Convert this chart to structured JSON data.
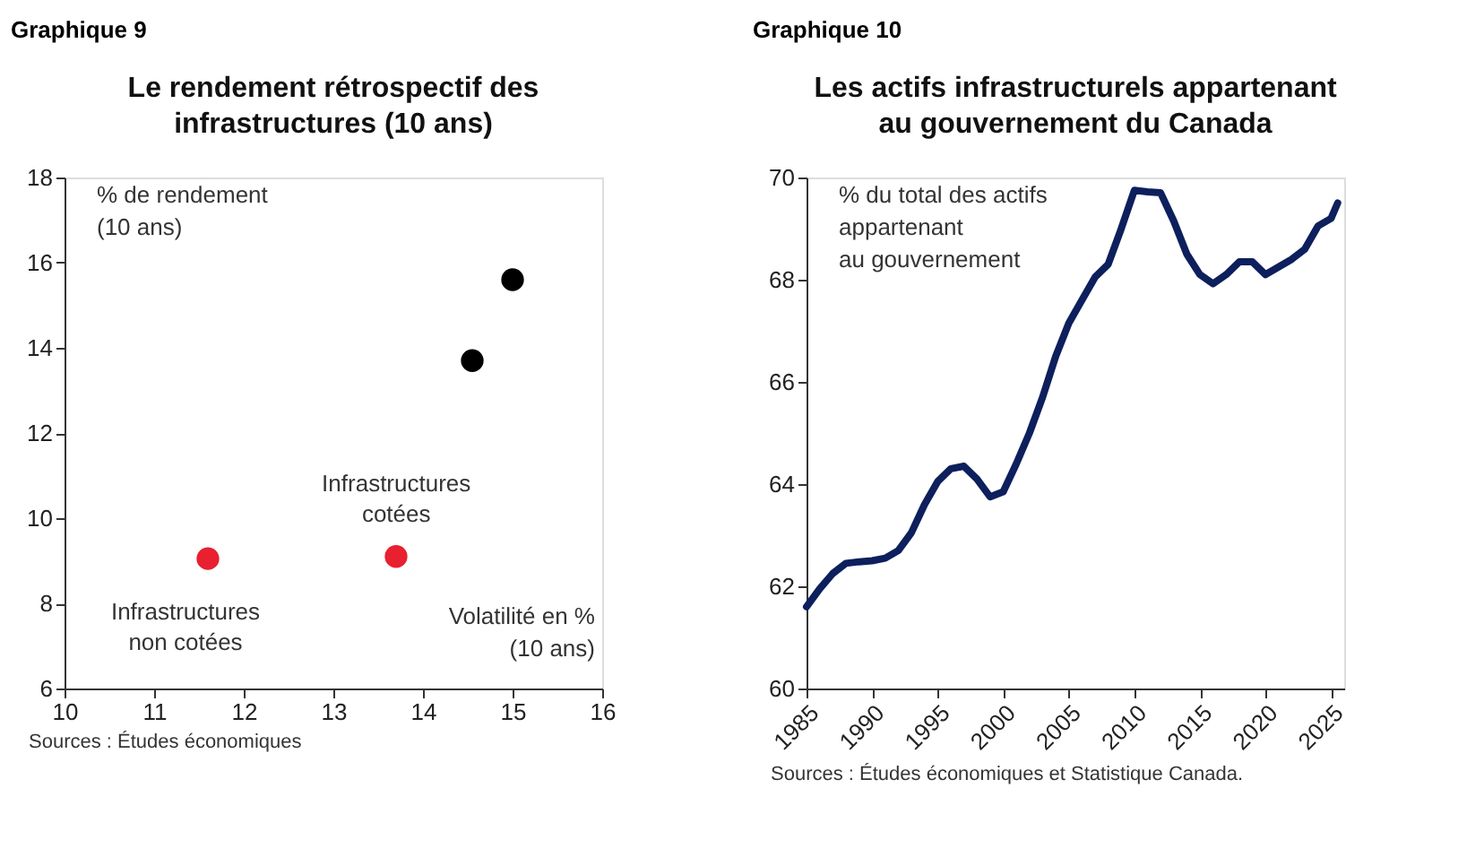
{
  "chart_data": [
    {
      "type": "scatter",
      "title": "Le rendement rétrospectif des\ninfrastructures (10 ans)",
      "ylabel": "% de rendement\n(10 ans)",
      "xlabel": "Volatilité en %\n(10 ans)",
      "series": [
        {
          "color": "#e8202f",
          "x": [
            11.6,
            13.7
          ],
          "values": [
            9.05,
            9.1
          ]
        },
        {
          "color": "#000000",
          "x": [
            14.55,
            15.0
          ],
          "values": [
            13.7,
            15.6
          ]
        }
      ],
      "annotations": [
        "Graphique 9",
        "Sources : Études économiques",
        "Infrastructures\nnon cotées",
        "Infrastructures\ncotées"
      ],
      "xlim": [
        10,
        16
      ],
      "xticks": [
        10,
        11,
        12,
        13,
        14,
        15,
        16
      ],
      "ylim": [
        6,
        18
      ],
      "yticks": [
        6,
        8,
        10,
        12,
        14,
        16,
        18
      ],
      "grid": false,
      "marker": "circle",
      "legend": false
    },
    {
      "type": "line",
      "title": "Les actifs infrastructurels appartenant\nau gouvernement du Canada",
      "ylabel": "% du total des actifs\nappartenant\nau gouvernement",
      "x": [
        1985,
        1986,
        1987,
        1988,
        1989,
        1990,
        1991,
        1992,
        1993,
        1994,
        1995,
        1996,
        1997,
        1998,
        1999,
        2000,
        2001,
        2002,
        2003,
        2004,
        2005,
        2006,
        2007,
        2008,
        2009,
        2010,
        2011,
        2012,
        2013,
        2014,
        2015,
        2016,
        2017,
        2018,
        2019,
        2020,
        2021,
        2022,
        2023,
        2024,
        2025,
        2025.5
      ],
      "series": [
        {
          "color": "#0d1f5c",
          "values": [
            61.6,
            61.95,
            62.25,
            62.45,
            62.48,
            62.5,
            62.55,
            62.7,
            63.05,
            63.6,
            64.05,
            64.3,
            64.35,
            64.1,
            63.75,
            63.85,
            64.4,
            65.0,
            65.7,
            66.5,
            67.15,
            67.6,
            68.05,
            68.3,
            69.0,
            69.75,
            69.72,
            69.7,
            69.15,
            68.5,
            68.1,
            67.92,
            68.1,
            68.35,
            68.35,
            68.1,
            68.25,
            68.4,
            68.6,
            69.05,
            69.2,
            69.5
          ]
        }
      ],
      "annotations": [
        "Graphique 10",
        "Sources : Études économiques et Statistique Canada."
      ],
      "xlim": [
        1985,
        2026
      ],
      "xticks": [
        1985,
        1990,
        1995,
        2000,
        2005,
        2010,
        2015,
        2020,
        2025
      ],
      "ylim": [
        60,
        70
      ],
      "yticks": [
        60,
        62,
        64,
        66,
        68,
        70
      ],
      "grid": false,
      "line_style": "solid",
      "legend": false
    }
  ]
}
